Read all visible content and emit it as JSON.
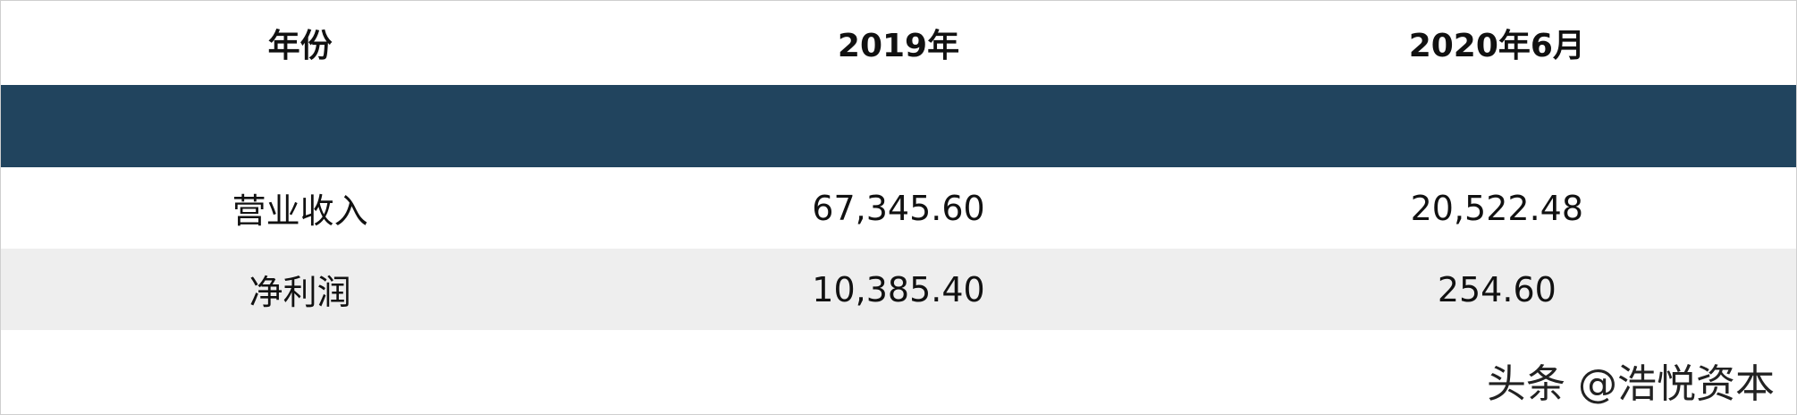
{
  "table": {
    "header": [
      "年份",
      "2019年",
      "2020年6月"
    ],
    "rows": [
      [
        "营业收入",
        "67,345.60",
        "20,522.48"
      ],
      [
        "净利润",
        "10,385.40",
        "254.60"
      ]
    ]
  },
  "watermark": "头条 @浩悦资本"
}
